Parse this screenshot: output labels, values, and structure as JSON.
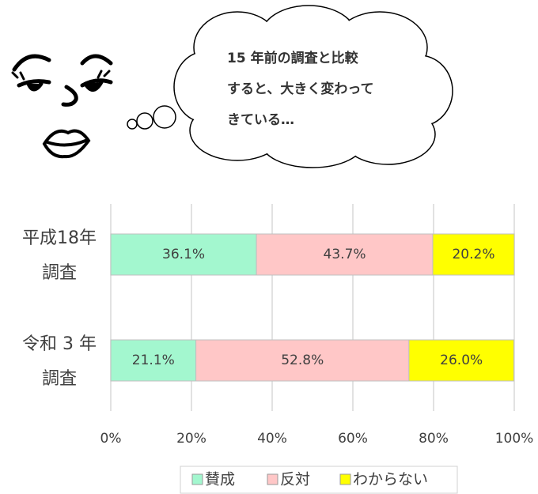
{
  "annotation": [
    "15 年前の調査と比較",
    "すると、大きく変わって",
    "きている…"
  ],
  "chart_data": {
    "type": "stacked-barh",
    "categories": [
      [
        "平成18年",
        "調査"
      ],
      [
        "令和 3 年",
        "調査"
      ]
    ],
    "series": [
      {
        "name": "賛成",
        "color": "#a3f7cf",
        "values": [
          36.1,
          21.1
        ],
        "value_labels": [
          "36.1%",
          "21.1%"
        ]
      },
      {
        "name": "反対",
        "color": "#ffc7c7",
        "values": [
          43.7,
          52.8
        ],
        "value_labels": [
          "43.7%",
          "52.8%"
        ]
      },
      {
        "name": "わからない",
        "color": "#ffff00",
        "values": [
          20.2,
          26.0
        ],
        "value_labels": [
          "20.2%",
          "26.0%"
        ]
      }
    ],
    "xlim": [
      0,
      100
    ],
    "xticks": [
      {
        "value": 0,
        "label": "0%"
      },
      {
        "value": 20,
        "label": "20%"
      },
      {
        "value": 40,
        "label": "40%"
      },
      {
        "value": 60,
        "label": "60%"
      },
      {
        "value": 80,
        "label": "80%"
      },
      {
        "value": 100,
        "label": "100%"
      }
    ],
    "grid": true
  }
}
